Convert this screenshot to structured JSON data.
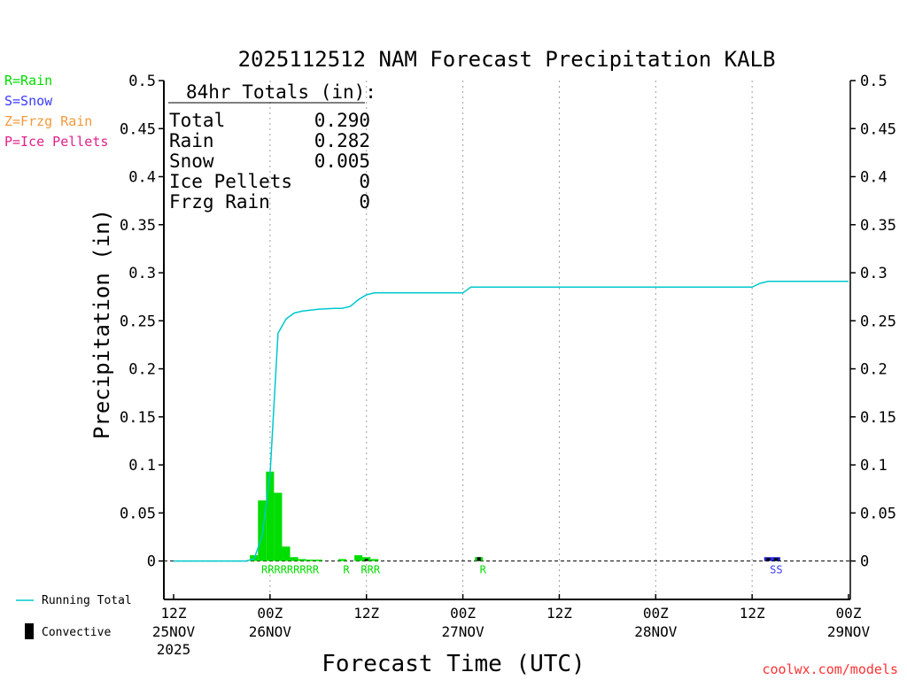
{
  "chart_data": {
    "type": "bar",
    "title": "2025112512 NAM Forecast Precipitation KALB",
    "xlabel": "Forecast Time (UTC)",
    "ylabel": "Precipitation (in)",
    "ylim": [
      -0.04,
      0.5
    ],
    "xlim_hours": [
      0,
      84
    ],
    "y_ticks": [
      "0.5",
      "0.45",
      "0.4",
      "0.35",
      "0.3",
      "0.25",
      "0.2",
      "0.15",
      "0.1",
      "0.05",
      "0"
    ],
    "y_tick_values": [
      0.5,
      0.45,
      0.4,
      0.35,
      0.3,
      0.25,
      0.2,
      0.15,
      0.1,
      0.05,
      0
    ],
    "x_ticks": [
      {
        "hour": 0,
        "time": "12Z",
        "date": "25NOV",
        "year": "2025"
      },
      {
        "hour": 12,
        "time": "00Z",
        "date": "26NOV",
        "year": ""
      },
      {
        "hour": 24,
        "time": "12Z",
        "date": "",
        "year": ""
      },
      {
        "hour": 36,
        "time": "00Z",
        "date": "27NOV",
        "year": ""
      },
      {
        "hour": 48,
        "time": "12Z",
        "date": "",
        "year": ""
      },
      {
        "hour": 60,
        "time": "00Z",
        "date": "28NOV",
        "year": ""
      },
      {
        "hour": 72,
        "time": "12Z",
        "date": "",
        "year": ""
      },
      {
        "hour": 84,
        "time": "00Z",
        "date": "29NOV",
        "year": ""
      }
    ],
    "gridlines_hours": [
      12,
      24,
      36,
      48,
      60,
      72
    ],
    "bars": [
      {
        "hour": 10,
        "value": 0.006,
        "type": "R"
      },
      {
        "hour": 11,
        "value": 0.063,
        "type": "R"
      },
      {
        "hour": 12,
        "value": 0.093,
        "type": "R"
      },
      {
        "hour": 13,
        "value": 0.071,
        "type": "R"
      },
      {
        "hour": 14,
        "value": 0.015,
        "type": "R"
      },
      {
        "hour": 15,
        "value": 0.004,
        "type": "R"
      },
      {
        "hour": 16,
        "value": 0.002,
        "type": "R"
      },
      {
        "hour": 17,
        "value": 0.001,
        "type": "R"
      },
      {
        "hour": 18,
        "value": 0.001,
        "type": "R"
      },
      {
        "hour": 21,
        "value": 0.002,
        "type": "R"
      },
      {
        "hour": 23,
        "value": 0.006,
        "type": "R"
      },
      {
        "hour": 24,
        "value": 0.004,
        "type": "R"
      },
      {
        "hour": 25,
        "value": 0.002,
        "type": "R"
      },
      {
        "hour": 38,
        "value": 0.004,
        "type": "R"
      },
      {
        "hour": 74,
        "value": 0.004,
        "type": "S"
      },
      {
        "hour": 75,
        "value": 0.004,
        "type": "S"
      }
    ],
    "convective": [
      {
        "hour": 24,
        "value": 0.002
      },
      {
        "hour": 38,
        "value": 0.004
      },
      {
        "hour": 74,
        "value": 0.003
      },
      {
        "hour": 75,
        "value": 0.003
      }
    ],
    "running_total": {
      "name": "Running Total",
      "hours": [
        0,
        9,
        10,
        11,
        12,
        13,
        14,
        15,
        16,
        18,
        20,
        21,
        22,
        23,
        24,
        25,
        26,
        30,
        36,
        37,
        38,
        72,
        73,
        74,
        84
      ],
      "values": [
        0,
        0,
        0.002,
        0.025,
        0.09,
        0.237,
        0.252,
        0.258,
        0.26,
        0.262,
        0.263,
        0.263,
        0.265,
        0.272,
        0.277,
        0.279,
        0.279,
        0.279,
        0.279,
        0.285,
        0.285,
        0.285,
        0.289,
        0.291,
        0.291
      ]
    },
    "ptype_labels": [
      {
        "text": "RRRRRRRRR",
        "type": "R",
        "hour_center": 14.5
      },
      {
        "text": "R",
        "type": "R",
        "hour_center": 21.5
      },
      {
        "text": "RRR",
        "type": "R",
        "hour_center": 24.5
      },
      {
        "text": "R",
        "type": "R",
        "hour_center": 38.5
      },
      {
        "text": "SS",
        "type": "S",
        "hour_center": 75.0
      }
    ],
    "totals_box": {
      "header": "84hr Totals (in):",
      "rows": [
        {
          "label": "Total",
          "value": "0.290"
        },
        {
          "label": "Rain",
          "value": "0.282"
        },
        {
          "label": "Snow",
          "value": "0.005"
        },
        {
          "label": "Ice Pellets",
          "value": "0"
        },
        {
          "label": "Frzg Rain",
          "value": "0"
        }
      ]
    },
    "ptype_legend": [
      {
        "text": "R=Rain",
        "color": "#00dd00"
      },
      {
        "text": "S=Snow",
        "color": "#3a3aff"
      },
      {
        "text": "Z=Frzg Rain",
        "color": "#f39a3c"
      },
      {
        "text": "P=Ice Pellets",
        "color": "#e0208a"
      }
    ],
    "series_legend": {
      "running_total": "Running Total",
      "convective": "Convective"
    },
    "credit": "coolwx.com/models"
  },
  "colors": {
    "rain": "#00dd00",
    "snow": "#2222cc",
    "snow_label": "#3a3aff",
    "running_total": "#00c8cc",
    "convective": "#000000",
    "credit": "#ff3333",
    "grid": "#a0a0a0",
    "axis": "#000000"
  }
}
